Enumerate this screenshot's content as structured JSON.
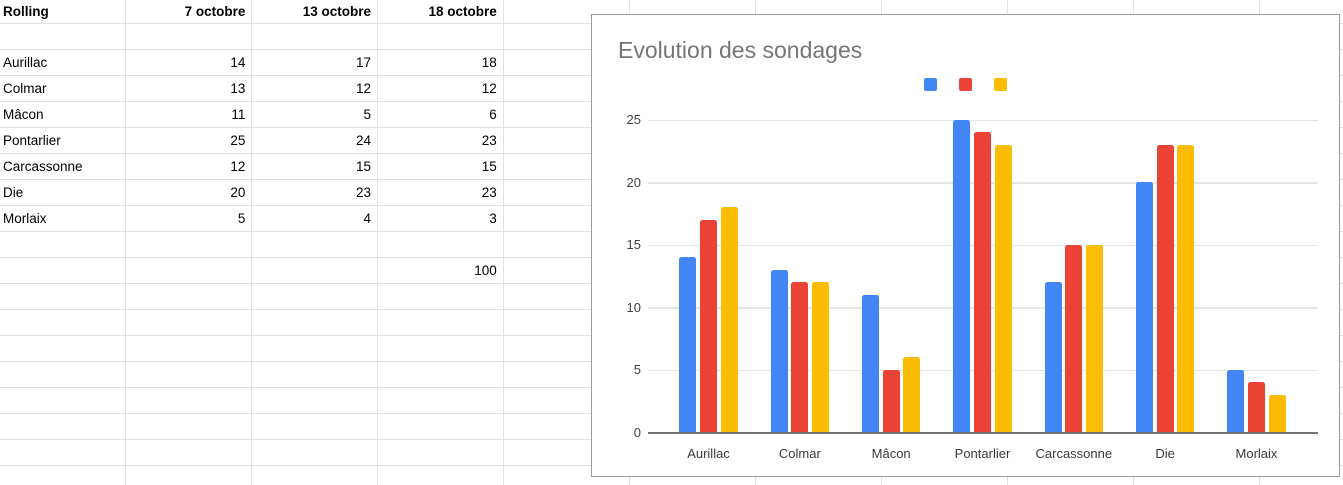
{
  "sheet": {
    "header": {
      "row": 1,
      "cells": [
        "Rolling",
        "7 octobre",
        "13 octobre",
        "18 octobre"
      ]
    },
    "rows": [
      {
        "row": 3,
        "label": "Aurillac",
        "values": [
          "14",
          "17",
          "18"
        ]
      },
      {
        "row": 4,
        "label": "Colmar",
        "values": [
          "13",
          "12",
          "12"
        ]
      },
      {
        "row": 5,
        "label": "Mâcon",
        "values": [
          "11",
          "5",
          "6"
        ]
      },
      {
        "row": 6,
        "label": "Pontarlier",
        "values": [
          "25",
          "24",
          "23"
        ]
      },
      {
        "row": 7,
        "label": "Carcassonne",
        "values": [
          "12",
          "15",
          "15"
        ]
      },
      {
        "row": 8,
        "label": "Die",
        "values": [
          "20",
          "23",
          "23"
        ]
      },
      {
        "row": 9,
        "label": "Morlaix",
        "values": [
          "5",
          "4",
          "3"
        ]
      },
      {
        "row": 11,
        "label": "",
        "values": [
          "",
          "",
          "100"
        ]
      }
    ]
  },
  "chart_data": {
    "type": "bar",
    "title": "Evolution des sondages",
    "title_color": "#757575",
    "categories": [
      "Aurillac",
      "Colmar",
      "Mâcon",
      "Pontarlier",
      "Carcassonne",
      "Die",
      "Morlaix"
    ],
    "series": [
      {
        "name": "7 octobre",
        "color": "#4285F4",
        "values": [
          14,
          13,
          11,
          25,
          12,
          20,
          5
        ]
      },
      {
        "name": "13 octobre",
        "color": "#EA4335",
        "values": [
          17,
          12,
          5,
          24,
          15,
          23,
          4
        ]
      },
      {
        "name": "18 octobre",
        "color": "#FBBC04",
        "values": [
          18,
          12,
          6,
          23,
          15,
          23,
          3
        ]
      }
    ],
    "ylim": [
      0,
      25
    ],
    "yticks": [
      0,
      5,
      10,
      15,
      20,
      25
    ],
    "grid": true,
    "legend_position": "top-center",
    "legend_labels_visible": false,
    "xlabel": "",
    "ylabel": ""
  }
}
